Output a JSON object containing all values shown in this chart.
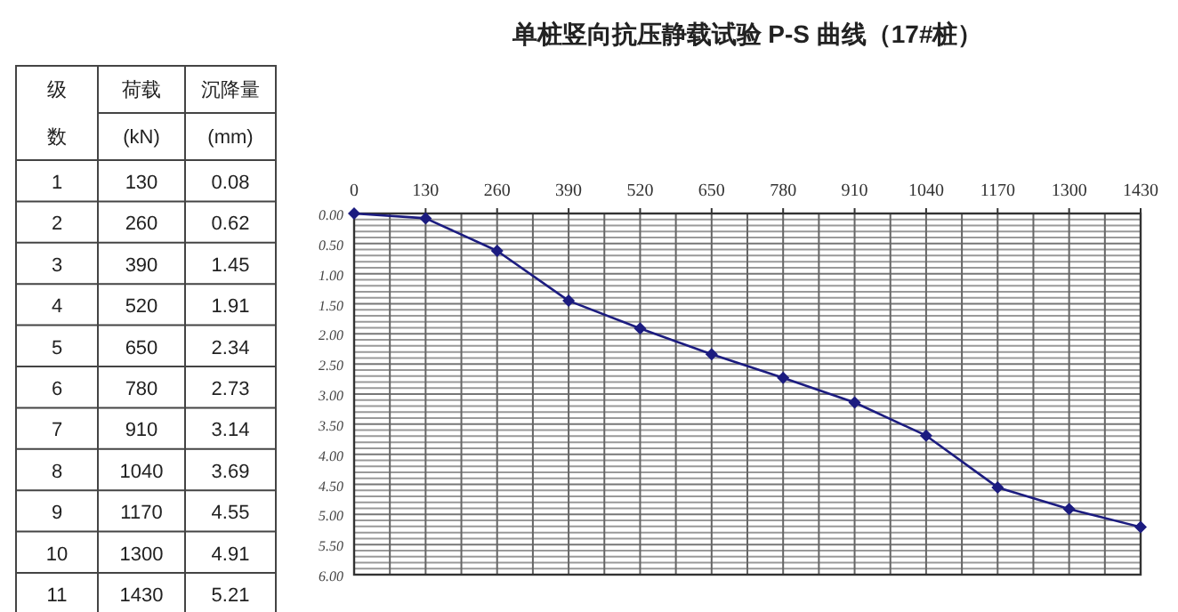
{
  "chart_data": {
    "type": "line",
    "title": "单桩竖向抗压静载试验 P-S 曲线（17#桩）",
    "annotations": [
      "级",
      "数",
      "荷载",
      "(kN)",
      "沉降量",
      "(mm)",
      "1",
      "130",
      "0.08",
      "2",
      "260",
      "0.62",
      "3",
      "390",
      "1.45",
      "4",
      "520",
      "1.91",
      "5",
      "650",
      "2.34",
      "6",
      "780",
      "2.73",
      "7",
      "910",
      "3.14",
      "8",
      "1040",
      "3.69",
      "9",
      "1170",
      "4.55",
      "10",
      "1300",
      "4.91",
      "11",
      "1430",
      "5.21"
    ],
    "x": [
      0,
      130,
      260,
      390,
      520,
      650,
      780,
      910,
      1040,
      1170,
      1300,
      1430
    ],
    "series": [
      {
        "color": "#1c1c80",
        "values": [
          0,
          0.08,
          0.62,
          1.45,
          1.91,
          2.34,
          2.73,
          3.14,
          3.69,
          4.55,
          4.91,
          5.21
        ]
      }
    ],
    "xlim": [
      0,
      1430
    ],
    "ylim": [
      6,
      0
    ],
    "xticks": [
      0,
      {
        "value": 65,
        "label": null
      },
      130,
      {
        "value": 195,
        "label": null
      },
      260,
      {
        "value": 325,
        "label": null
      },
      390,
      {
        "value": 455,
        "label": null
      },
      520,
      {
        "value": 585,
        "label": null
      },
      650,
      {
        "value": 715,
        "label": null
      },
      780,
      {
        "value": 845,
        "label": null
      },
      910,
      {
        "value": 975,
        "label": null
      },
      1040,
      {
        "value": 1105,
        "label": null
      },
      1170,
      {
        "value": 1235,
        "label": null
      },
      1300,
      {
        "value": 1365,
        "label": null
      },
      1430
    ],
    "yticks": [
      {
        "value": 0,
        "label": "0.00"
      },
      {
        "value": 0.1,
        "label": null
      },
      {
        "value": 0.2,
        "label": null
      },
      {
        "value": 0.3,
        "label": null
      },
      {
        "value": 0.4,
        "label": null
      },
      {
        "value": 0.5,
        "label": "0.50"
      },
      {
        "value": 0.6,
        "label": null
      },
      {
        "value": 0.7,
        "label": null
      },
      {
        "value": 0.8,
        "label": null
      },
      {
        "value": 0.9,
        "label": null
      },
      {
        "value": 1,
        "label": "1.00"
      },
      {
        "value": 1.1,
        "label": null
      },
      {
        "value": 1.2,
        "label": null
      },
      {
        "value": 1.3,
        "label": null
      },
      {
        "value": 1.4,
        "label": null
      },
      {
        "value": 1.5,
        "label": "1.50"
      },
      {
        "value": 1.6,
        "label": null
      },
      {
        "value": 1.7,
        "label": null
      },
      {
        "value": 1.8,
        "label": null
      },
      {
        "value": 1.9,
        "label": null
      },
      {
        "value": 2,
        "label": "2.00"
      },
      {
        "value": 2.1,
        "label": null
      },
      {
        "value": 2.2,
        "label": null
      },
      {
        "value": 2.3,
        "label": null
      },
      {
        "value": 2.4,
        "label": null
      },
      {
        "value": 2.5,
        "label": "2.50"
      },
      {
        "value": 2.6,
        "label": null
      },
      {
        "value": 2.7,
        "label": null
      },
      {
        "value": 2.8,
        "label": null
      },
      {
        "value": 2.9,
        "label": null
      },
      {
        "value": 3,
        "label": "3.00"
      },
      {
        "value": 3.1,
        "label": null
      },
      {
        "value": 3.2,
        "label": null
      },
      {
        "value": 3.3,
        "label": null
      },
      {
        "value": 3.4,
        "label": null
      },
      {
        "value": 3.5,
        "label": "3.50"
      },
      {
        "value": 3.6,
        "label": null
      },
      {
        "value": 3.7,
        "label": null
      },
      {
        "value": 3.8,
        "label": null
      },
      {
        "value": 3.9,
        "label": null
      },
      {
        "value": 4,
        "label": "4.00"
      },
      {
        "value": 4.1,
        "label": null
      },
      {
        "value": 4.2,
        "label": null
      },
      {
        "value": 4.3,
        "label": null
      },
      {
        "value": 4.4,
        "label": null
      },
      {
        "value": 4.5,
        "label": "4.50"
      },
      {
        "value": 4.6,
        "label": null
      },
      {
        "value": 4.7,
        "label": null
      },
      {
        "value": 4.8,
        "label": null
      },
      {
        "value": 4.9,
        "label": null
      },
      {
        "value": 5,
        "label": "5.00"
      },
      {
        "value": 5.1,
        "label": null
      },
      {
        "value": 5.2,
        "label": null
      },
      {
        "value": 5.3,
        "label": null
      },
      {
        "value": 5.4,
        "label": null
      },
      {
        "value": 5.5,
        "label": "5.50"
      },
      {
        "value": 5.6,
        "label": null
      },
      {
        "value": 5.7,
        "label": null
      },
      {
        "value": 5.8,
        "label": null
      },
      {
        "value": 5.9,
        "label": null
      },
      {
        "value": 6,
        "label": "6.00"
      }
    ],
    "grid": true,
    "marker": "diamond",
    "line_style": "solid"
  }
}
